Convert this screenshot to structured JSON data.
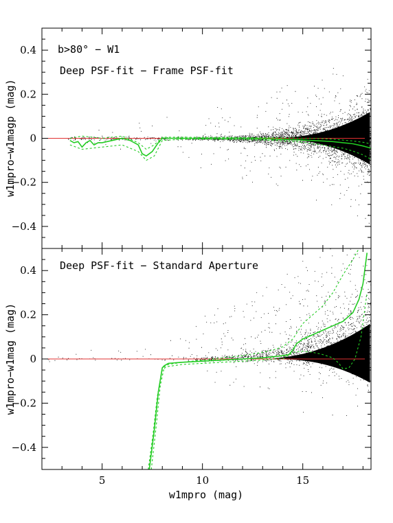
{
  "chart_data": [
    {
      "type": "scatter",
      "panel": "top",
      "annotation_line1": "b>80° − W1",
      "annotation_line2": "Deep PSF-fit − Frame PSF-fit",
      "xlabel": "",
      "ylabel": "w1mpro−w1magp (mag)",
      "xlim": [
        2,
        18.4
      ],
      "ylim": [
        -0.5,
        0.5
      ],
      "xticks": [
        5,
        10,
        15
      ],
      "yticks": [
        -0.4,
        -0.2,
        0,
        0.2,
        0.4
      ],
      "ytick_labels": [
        "−0.4",
        "−0.2",
        "0",
        "0.2",
        "0.4"
      ],
      "reference_line": {
        "y": 0,
        "color": "#e03030"
      },
      "scatter_color": "#000000",
      "series": [
        {
          "role": "median",
          "style": "solid",
          "color": "#22cc22",
          "x": [
            3.4,
            3.6,
            3.8,
            4.0,
            4.2,
            4.4,
            4.6,
            4.8,
            5.0,
            5.5,
            6.0,
            6.4,
            6.8,
            7.0,
            7.2,
            7.5,
            7.8,
            8.0,
            8.5,
            9,
            10,
            11,
            12,
            13,
            14,
            15,
            15.5,
            16,
            16.5,
            17,
            17.5,
            18,
            18.4
          ],
          "y": [
            -0.01,
            -0.02,
            -0.015,
            -0.04,
            -0.02,
            -0.01,
            -0.03,
            -0.02,
            -0.02,
            -0.01,
            0.0,
            -0.01,
            -0.03,
            -0.07,
            -0.08,
            -0.06,
            -0.02,
            0.0,
            0.0,
            0.0,
            0.0,
            0.0,
            0.0,
            -0.002,
            -0.005,
            -0.008,
            -0.01,
            -0.012,
            -0.015,
            -0.02,
            -0.025,
            -0.035,
            -0.045
          ]
        },
        {
          "role": "upper",
          "style": "dashed",
          "color": "#22cc22",
          "x": [
            3.4,
            4,
            5,
            6,
            6.8,
            7.2,
            7.6,
            8,
            9,
            10,
            11,
            12,
            13,
            14,
            15,
            15.5,
            16,
            16.5,
            17,
            17.5,
            18,
            18.4
          ],
          "y": [
            0.0,
            0.01,
            0.0,
            0.01,
            -0.02,
            -0.05,
            -0.03,
            0.005,
            0.005,
            0.004,
            0.004,
            0.003,
            0.003,
            0.002,
            0.0,
            0.0,
            -0.002,
            -0.004,
            -0.008,
            -0.012,
            -0.018,
            -0.025
          ]
        },
        {
          "role": "lower",
          "style": "dashed",
          "color": "#22cc22",
          "x": [
            3.4,
            4,
            5,
            6,
            6.8,
            7.2,
            7.6,
            8,
            9,
            10,
            11,
            12,
            13,
            14,
            15,
            15.5,
            16,
            16.5,
            17,
            17.5,
            18,
            18.4
          ],
          "y": [
            -0.03,
            -0.05,
            -0.04,
            -0.03,
            -0.06,
            -0.1,
            -0.08,
            -0.01,
            -0.004,
            -0.004,
            -0.005,
            -0.006,
            -0.008,
            -0.012,
            -0.018,
            -0.025,
            -0.03,
            -0.038,
            -0.045,
            -0.058,
            -0.075,
            -0.095
          ]
        }
      ]
    },
    {
      "type": "scatter",
      "panel": "bottom",
      "annotation_line1": "Deep PSF-fit − Standard Aperture",
      "xlabel": "w1mpro (mag)",
      "ylabel": "w1mpro−w1mag (mag)",
      "xlim": [
        2,
        18.4
      ],
      "ylim": [
        -0.5,
        0.5
      ],
      "xticks": [
        5,
        10,
        15
      ],
      "xtick_labels": [
        "5",
        "10",
        "15"
      ],
      "yticks": [
        -0.4,
        -0.2,
        0,
        0.2,
        0.4
      ],
      "ytick_labels": [
        "−0.4",
        "−0.2",
        "0",
        "0.2",
        "0.4"
      ],
      "reference_line": {
        "y": 0,
        "color": "#e03030"
      },
      "scatter_color": "#000000",
      "series": [
        {
          "role": "median",
          "style": "solid",
          "color": "#22cc22",
          "x": [
            7.35,
            7.6,
            7.8,
            8.0,
            8.1,
            8.3,
            9,
            10,
            11,
            12,
            13,
            13.5,
            14,
            14.3,
            14.5,
            14.7,
            15,
            15.5,
            16,
            16.5,
            17,
            17.5,
            17.8,
            18.0,
            18.2
          ],
          "y": [
            -0.5,
            -0.32,
            -0.15,
            -0.04,
            -0.03,
            -0.02,
            -0.015,
            -0.01,
            -0.005,
            0.0,
            0.005,
            0.01,
            0.015,
            0.02,
            0.04,
            0.07,
            0.09,
            0.11,
            0.13,
            0.15,
            0.17,
            0.21,
            0.27,
            0.34,
            0.48
          ]
        },
        {
          "role": "upper",
          "style": "dashed",
          "color": "#22cc22",
          "x": [
            7.45,
            7.7,
            7.9,
            8.1,
            8.3,
            9,
            10,
            11,
            12,
            13,
            13.5,
            14,
            14.5,
            15,
            15.5,
            16,
            16.5,
            17,
            17.5,
            17.8,
            18.0
          ],
          "y": [
            -0.5,
            -0.3,
            -0.12,
            -0.035,
            -0.025,
            -0.015,
            -0.005,
            0.005,
            0.015,
            0.03,
            0.04,
            0.055,
            0.09,
            0.16,
            0.2,
            0.24,
            0.3,
            0.38,
            0.45,
            0.5,
            0.5
          ]
        },
        {
          "role": "lower",
          "style": "dashed",
          "color": "#22cc22",
          "x": [
            7.3,
            7.55,
            7.75,
            8.0,
            8.2,
            9,
            10,
            11,
            12,
            13,
            13.5,
            14,
            14.5,
            15,
            15.5,
            16,
            16.5,
            16.8,
            17.0,
            17.3,
            17.6,
            17.9,
            18.2
          ],
          "y": [
            -0.5,
            -0.33,
            -0.17,
            -0.05,
            -0.035,
            -0.025,
            -0.02,
            -0.015,
            -0.01,
            -0.005,
            0.0,
            0.0,
            0.03,
            0.035,
            0.03,
            0.02,
            0.005,
            -0.02,
            -0.045,
            -0.04,
            0.0,
            0.1,
            0.3
          ]
        }
      ]
    }
  ]
}
